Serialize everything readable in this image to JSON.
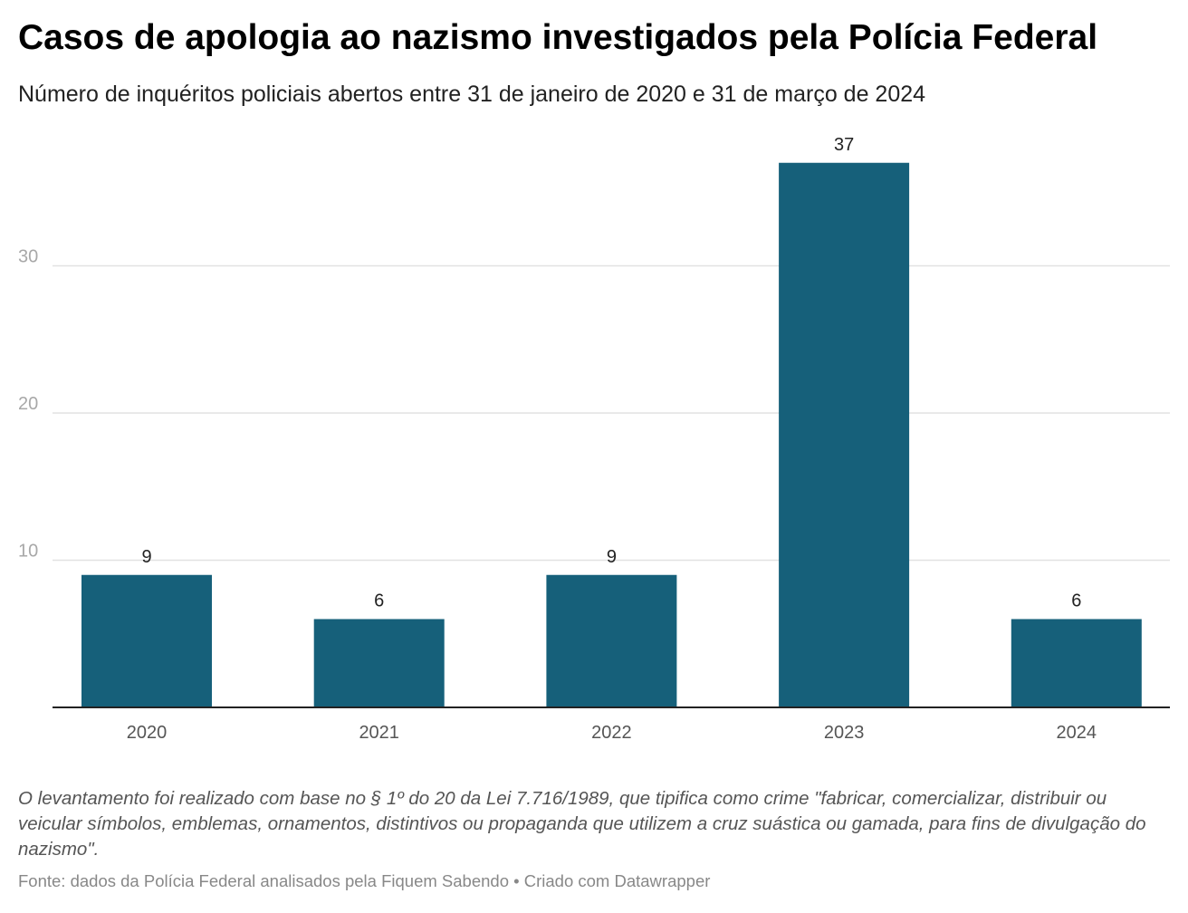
{
  "title": "Casos de apologia ao nazismo investigados pela Polícia Federal",
  "subtitle": "Número de inquéritos policiais abertos entre 31 de janeiro de 2020 e 31 de março de 2024",
  "chart_data": {
    "type": "bar",
    "categories": [
      "2020",
      "2021",
      "2022",
      "2023",
      "2024"
    ],
    "values": [
      9,
      6,
      9,
      37,
      6
    ],
    "data_labels": [
      "9",
      "6",
      "9",
      "37",
      "6"
    ],
    "title": "Casos de apologia ao nazismo investigados pela Polícia Federal",
    "xlabel": "",
    "ylabel": "",
    "ylim": [
      0,
      40
    ],
    "yticks": [
      10,
      20,
      30
    ],
    "grid": true,
    "bar_color": "#16607a"
  },
  "note": "O levantamento foi realizado com base no § 1º do 20 da Lei 7.716/1989, que tipifica como crime \"fabricar, comercializar, distribuir ou veicular símbolos, emblemas, ornamentos, distintivos ou propaganda que utilizem a cruz suástica ou gamada, para fins de divulgação do nazismo\".",
  "source": "Fonte: dados da Polícia Federal analisados pela Fiquem Sabendo • Criado com Datawrapper"
}
